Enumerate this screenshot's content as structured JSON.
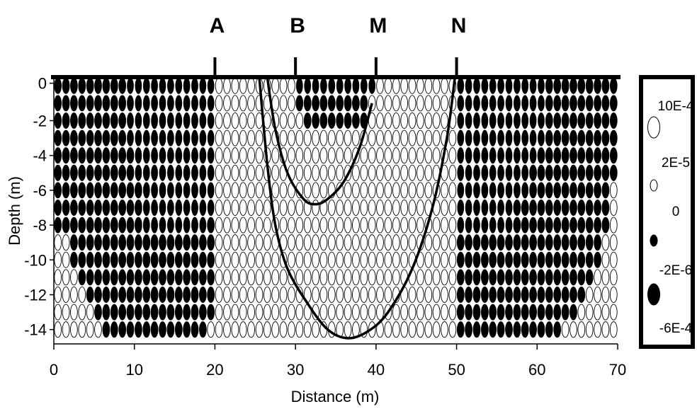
{
  "chart_data": {
    "type": "scatter",
    "title": "",
    "xlabel": "Distance (m)",
    "ylabel": "Depth (m)",
    "xlim": [
      0,
      70
    ],
    "ylim": [
      -15,
      0
    ],
    "x_ticks": [
      "0",
      "10",
      "20",
      "30",
      "40",
      "50",
      "60",
      "70"
    ],
    "y_ticks": [
      "0",
      "-2",
      "-4",
      "-6",
      "-8",
      "-10",
      "-12",
      "-14"
    ],
    "grid": false,
    "legend_position": "right",
    "electrodes": [
      {
        "label": "A",
        "x": 20
      },
      {
        "label": "B",
        "x": 30
      },
      {
        "label": "M",
        "x": 40
      },
      {
        "label": "N",
        "x": 50
      }
    ],
    "legend": [
      {
        "label": "10E-4",
        "kind": "open-large"
      },
      {
        "label": "2E-5",
        "kind": "open-small"
      },
      {
        "label": "0",
        "kind": "filled-small"
      },
      {
        "label": "-2E-6",
        "kind": "filled-large"
      },
      {
        "label": "-6E-4",
        "kind": ""
      }
    ],
    "grid_spec": {
      "x_start": 0.5,
      "x_step": 1,
      "columns": 70,
      "depth_start": -0.5,
      "depth_step": 1,
      "rows": 15
    },
    "filled_ranges_by_row": [
      [
        [
          0.5,
          19.5
        ],
        [
          30.5,
          39.5
        ],
        [
          50.5,
          69.5
        ]
      ],
      [
        [
          0.5,
          19.5
        ],
        [
          30.5,
          31.5
        ],
        [
          31.5,
          38.5
        ],
        [
          50.5,
          69.5
        ]
      ],
      [
        [
          0.5,
          19.5
        ],
        [
          31.5,
          38.5
        ],
        [
          50.5,
          69.5
        ]
      ],
      [
        [
          0.5,
          19.5
        ],
        [
          50.5,
          69.5
        ]
      ],
      [
        [
          0.5,
          19.5
        ],
        [
          50.5,
          69.5
        ]
      ],
      [
        [
          0.5,
          19.5
        ],
        [
          50.5,
          69.5
        ]
      ],
      [
        [
          0.5,
          19.5
        ],
        [
          50.5,
          68.5
        ]
      ],
      [
        [
          0.5,
          19.5
        ],
        [
          50.5,
          68.5
        ]
      ],
      [
        [
          0.5,
          19.5
        ],
        [
          50.5,
          68.5
        ]
      ],
      [
        [
          2.5,
          19.5
        ],
        [
          50.5,
          67.5
        ]
      ],
      [
        [
          2.5,
          19.5
        ],
        [
          50.5,
          67.5
        ]
      ],
      [
        [
          3.5,
          19.5
        ],
        [
          50.5,
          66.5
        ]
      ],
      [
        [
          4.5,
          19.5
        ],
        [
          50.5,
          65.5
        ]
      ],
      [
        [
          5.5,
          19.5
        ],
        [
          50.5,
          64.5
        ]
      ],
      [
        [
          6.5,
          18.5
        ],
        [
          50.5,
          62.5
        ]
      ]
    ],
    "large_filled_ranges_by_row": [
      [
        [
          9.5,
          19.5
        ],
        [
          30.5,
          39.5
        ],
        [
          50.5,
          60.5
        ]
      ],
      [
        [
          9.5,
          19.5
        ],
        [
          50.5,
          60.5
        ]
      ],
      [
        [
          9.5,
          19.5
        ],
        [
          50.5,
          60.5
        ]
      ],
      [
        [
          9.5,
          19.5
        ],
        [
          50.5,
          60.5
        ]
      ],
      [
        [
          10.5,
          19.5
        ],
        [
          50.5,
          59.5
        ]
      ],
      [
        [
          10.5,
          19.5
        ],
        [
          50.5,
          58.5
        ]
      ],
      [
        [
          11.5,
          19.5
        ],
        [
          50.5,
          58.5
        ]
      ],
      [
        [
          11.5,
          19.5
        ],
        [
          50.5,
          56.5
        ]
      ],
      [
        [
          11.5,
          18.5
        ],
        [
          50.5,
          56.5
        ]
      ]
    ],
    "contours": [
      {
        "name": "",
        "x": [
          26.5,
          27.5,
          29,
          31,
          32.5,
          34,
          36,
          38,
          39.5
        ],
        "y": [
          0,
          -3,
          -5.5,
          -7,
          -7.3,
          -7,
          -6,
          -4,
          -1.5
        ]
      },
      {
        "name": "",
        "x": [
          25.5,
          26.5,
          27.5,
          29,
          31.5,
          34,
          36.5,
          39,
          41.5,
          44.5,
          47,
          48.8,
          49.8
        ],
        "y": [
          0,
          -5,
          -8.5,
          -11,
          -13,
          -14.5,
          -15,
          -14.6,
          -13.5,
          -11,
          -7.5,
          -3.5,
          0
        ]
      }
    ]
  }
}
